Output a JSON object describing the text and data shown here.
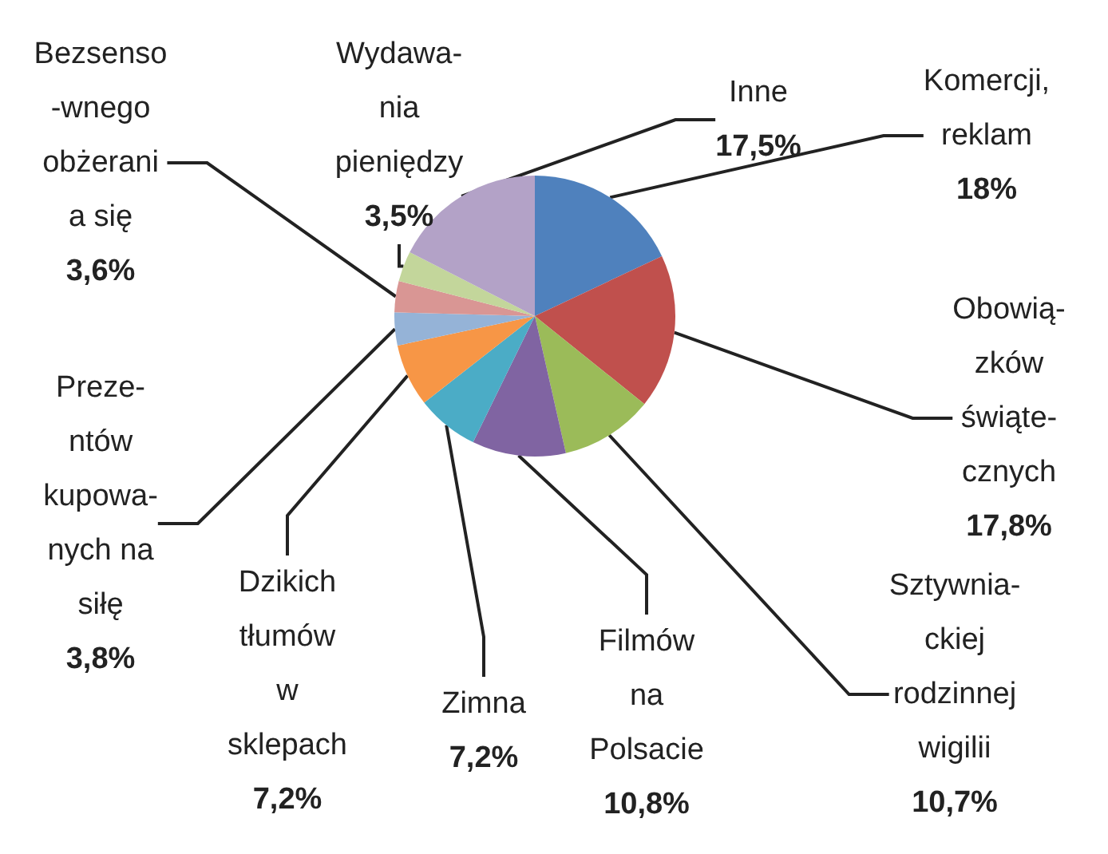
{
  "chart_data": {
    "type": "pie",
    "categories": [
      "Komercji,\nreklam",
      "Obowią-\nzków\nświąte-\ncznych",
      "Sztywnia-\nckiej\nrodzinnej\nwigilii",
      "Filmów\nna\nPolsacie",
      "Zimna",
      "Dzikich\ntłumów\nw\nsklepach",
      "Preze-\nntów\nkupowa-\nnych na\nsiłę",
      "Bezsenso\n-wnego\nobżerani\na się",
      "Wydawa-\nnia\npieniędzy",
      "Inne"
    ],
    "values": [
      18,
      17.8,
      10.7,
      10.8,
      7.2,
      7.2,
      3.8,
      3.6,
      3.5,
      17.5
    ],
    "value_labels": [
      "18%",
      "17,8%",
      "10,7%",
      "10,8%",
      "7,2%",
      "7,2%",
      "3,8%",
      "3,6%",
      "3,5%",
      "17,5%"
    ],
    "colors": [
      "#4f81bd",
      "#c0504d",
      "#9bbb59",
      "#8064a2",
      "#4bacc6",
      "#f79646",
      "#95b3d7",
      "#d99694",
      "#c3d69b",
      "#b3a2c7"
    ],
    "legend": false
  }
}
